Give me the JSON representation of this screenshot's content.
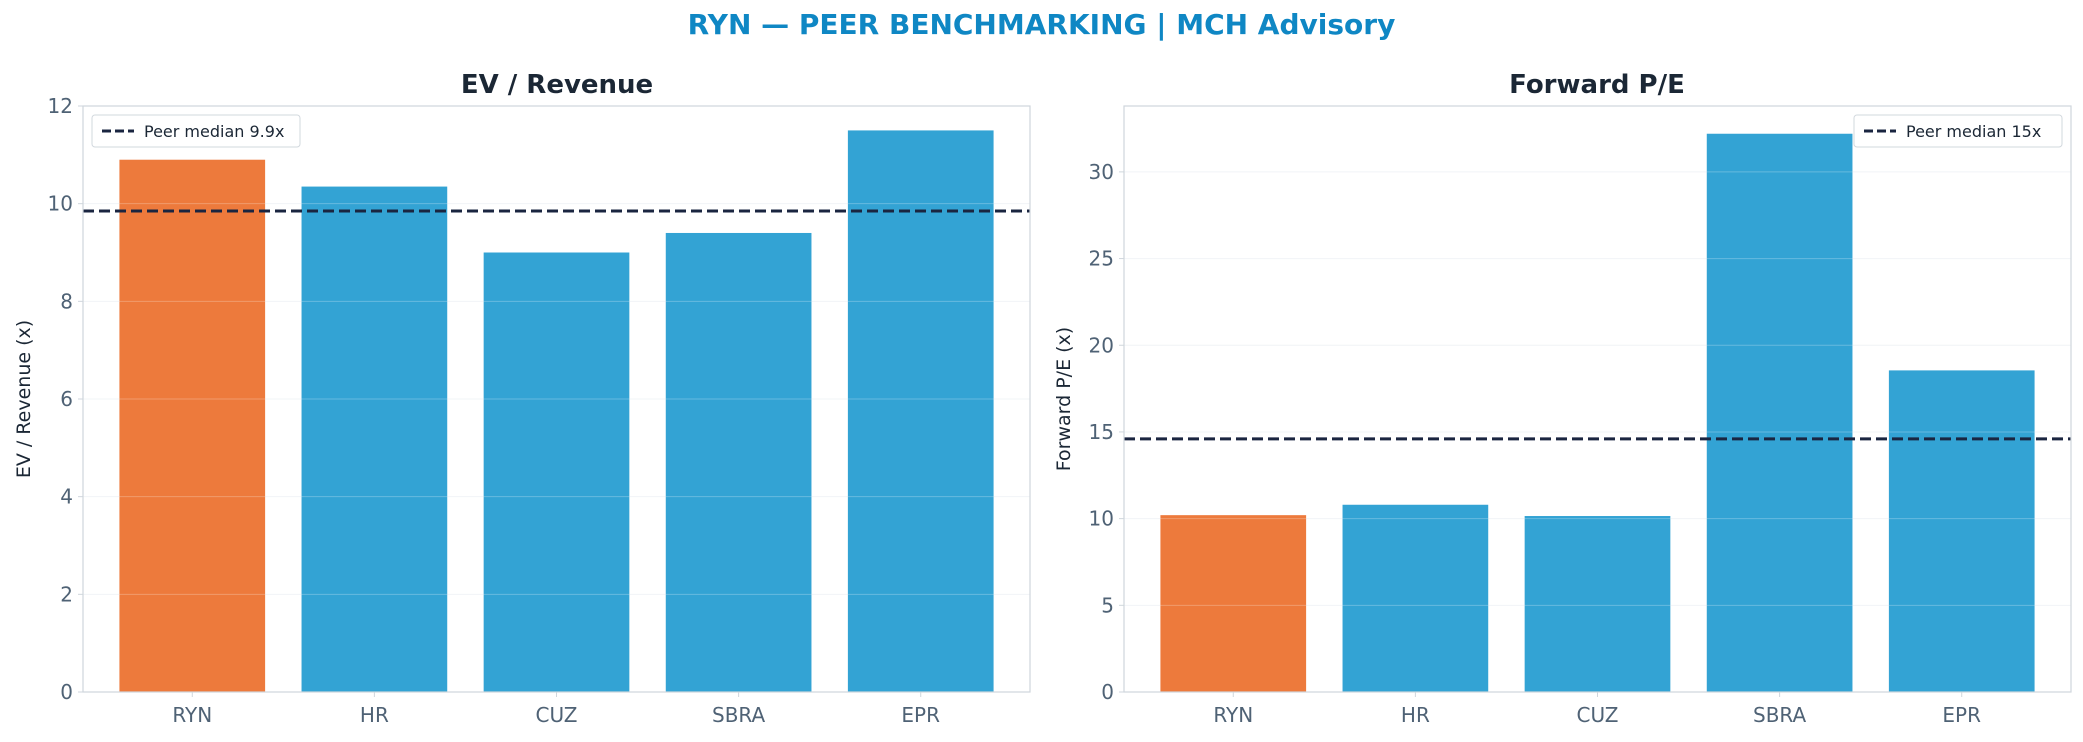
{
  "suptitle": "RYN — PEER BENCHMARKING | MCH Advisory",
  "colors": {
    "highlight": "#ed7a3c",
    "peer": "#33a3d4",
    "median_line": "#1a2540",
    "title_text": "#1b2735",
    "tick_text": "#4f6275",
    "axes_border": "#cfd6dc",
    "grid": "#eef1f4"
  },
  "chart_data": [
    {
      "type": "bar",
      "title": "EV / Revenue",
      "xlabel": "",
      "ylabel": "EV / Revenue (x)",
      "categories": [
        "RYN",
        "HR",
        "CUZ",
        "SBRA",
        "EPR"
      ],
      "values": [
        10.9,
        10.35,
        9.0,
        9.4,
        11.5
      ],
      "highlight_index": 0,
      "ylim": [
        0,
        12
      ],
      "yticks": [
        0,
        2,
        4,
        6,
        8,
        10,
        12
      ],
      "grid": true,
      "reference_line": {
        "value": 9.85,
        "label": "Peer median 9.9x"
      },
      "legend_position": "top-left"
    },
    {
      "type": "bar",
      "title": "Forward P/E",
      "xlabel": "",
      "ylabel": "Forward P/E (x)",
      "categories": [
        "RYN",
        "HR",
        "CUZ",
        "SBRA",
        "EPR"
      ],
      "values": [
        10.2,
        10.8,
        10.15,
        32.2,
        18.55
      ],
      "highlight_index": 0,
      "ylim": [
        0,
        33.8
      ],
      "yticks": [
        0,
        5,
        10,
        15,
        20,
        25,
        30
      ],
      "grid": true,
      "reference_line": {
        "value": 14.6,
        "label": "Peer median 15x"
      },
      "legend_position": "top-right"
    }
  ]
}
